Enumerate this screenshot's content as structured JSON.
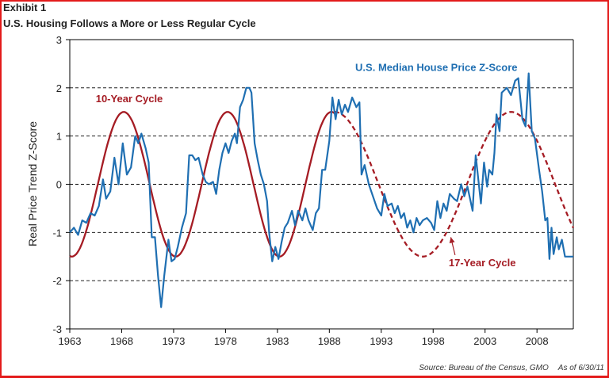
{
  "header": {
    "exhibit": "Exhibit 1",
    "title": "U.S. Housing Follows a More or Less Regular Cycle"
  },
  "footer": {
    "source": "Source: Bureau of the Census, GMO",
    "as_of": "As of 6/30/11"
  },
  "colors": {
    "frame": "#e31b1b",
    "blue_series": "#1f6fb2",
    "red_cycle": "#a51c24",
    "axis": "#000000"
  },
  "chart_data": {
    "type": "line",
    "title": "U.S. Housing Follows a More or Less Regular Cycle",
    "xlabel": "",
    "ylabel": "Real Price Trend Z-Score",
    "xlim": [
      1963,
      2011.5
    ],
    "ylim": [
      -3,
      3
    ],
    "x_ticks": [
      1963,
      1968,
      1973,
      1978,
      1983,
      1988,
      1993,
      1998,
      2003,
      2008
    ],
    "y_ticks": [
      -3,
      -2,
      -1,
      0,
      1,
      2,
      3
    ],
    "grid": "horizontal dashed at -2, -1, 0, 1, 2",
    "annotations": [
      {
        "text": "U.S. Median House Price Z-Score",
        "color": "blue",
        "near": [
          1990.5,
          2.35
        ]
      },
      {
        "text": "10-Year Cycle",
        "color": "red",
        "near": [
          1965.5,
          1.7
        ]
      },
      {
        "text": "17-Year Cycle",
        "color": "red",
        "near": [
          1999.5,
          -1.7
        ],
        "arrow_to": [
          1999.7,
          -1.1
        ]
      }
    ],
    "series": [
      {
        "name": "U.S. Median House Price Z-Score",
        "style": "solid",
        "color": "blue",
        "points": [
          [
            1963.0,
            -1.0
          ],
          [
            1963.4,
            -0.9
          ],
          [
            1963.8,
            -1.05
          ],
          [
            1964.2,
            -0.75
          ],
          [
            1964.6,
            -0.8
          ],
          [
            1965.0,
            -0.6
          ],
          [
            1965.4,
            -0.65
          ],
          [
            1965.8,
            -0.45
          ],
          [
            1966.2,
            0.1
          ],
          [
            1966.5,
            -0.3
          ],
          [
            1966.9,
            -0.15
          ],
          [
            1967.3,
            0.55
          ],
          [
            1967.7,
            0.0
          ],
          [
            1968.1,
            0.85
          ],
          [
            1968.5,
            0.2
          ],
          [
            1968.9,
            0.35
          ],
          [
            1969.3,
            1.0
          ],
          [
            1969.6,
            0.85
          ],
          [
            1969.9,
            1.05
          ],
          [
            1970.3,
            0.75
          ],
          [
            1970.6,
            0.45
          ],
          [
            1970.9,
            -1.1
          ],
          [
            1971.2,
            -1.1
          ],
          [
            1971.5,
            -1.9
          ],
          [
            1971.8,
            -2.55
          ],
          [
            1972.1,
            -1.9
          ],
          [
            1972.5,
            -1.15
          ],
          [
            1972.8,
            -1.6
          ],
          [
            1973.1,
            -1.55
          ],
          [
            1973.4,
            -1.3
          ],
          [
            1973.8,
            -0.9
          ],
          [
            1974.2,
            -0.6
          ],
          [
            1974.5,
            0.6
          ],
          [
            1974.8,
            0.6
          ],
          [
            1975.1,
            0.5
          ],
          [
            1975.4,
            0.55
          ],
          [
            1975.8,
            0.2
          ],
          [
            1976.1,
            0.05
          ],
          [
            1976.4,
            0.0
          ],
          [
            1976.8,
            0.05
          ],
          [
            1977.1,
            -0.2
          ],
          [
            1977.4,
            0.3
          ],
          [
            1977.7,
            0.65
          ],
          [
            1978.0,
            0.85
          ],
          [
            1978.3,
            0.65
          ],
          [
            1978.6,
            0.9
          ],
          [
            1978.9,
            1.05
          ],
          [
            1979.1,
            0.85
          ],
          [
            1979.4,
            1.6
          ],
          [
            1979.7,
            1.75
          ],
          [
            1980.0,
            2.0
          ],
          [
            1980.3,
            2.0
          ],
          [
            1980.5,
            1.9
          ],
          [
            1980.8,
            0.85
          ],
          [
            1981.1,
            0.5
          ],
          [
            1981.4,
            0.2
          ],
          [
            1981.7,
            0.0
          ],
          [
            1982.0,
            -0.35
          ],
          [
            1982.2,
            -1.0
          ],
          [
            1982.5,
            -1.6
          ],
          [
            1982.8,
            -1.3
          ],
          [
            1983.1,
            -1.55
          ],
          [
            1983.4,
            -1.2
          ],
          [
            1983.7,
            -0.9
          ],
          [
            1984.0,
            -0.8
          ],
          [
            1984.4,
            -0.55
          ],
          [
            1984.7,
            -0.85
          ],
          [
            1985.0,
            -0.55
          ],
          [
            1985.4,
            -0.75
          ],
          [
            1985.7,
            -0.5
          ],
          [
            1986.0,
            -0.75
          ],
          [
            1986.4,
            -0.95
          ],
          [
            1986.7,
            -0.6
          ],
          [
            1987.0,
            -0.5
          ],
          [
            1987.3,
            0.3
          ],
          [
            1987.6,
            0.3
          ],
          [
            1988.0,
            0.9
          ],
          [
            1988.3,
            1.8
          ],
          [
            1988.6,
            1.35
          ],
          [
            1988.9,
            1.75
          ],
          [
            1989.2,
            1.45
          ],
          [
            1989.5,
            1.65
          ],
          [
            1989.8,
            1.5
          ],
          [
            1990.2,
            1.8
          ],
          [
            1990.6,
            1.6
          ],
          [
            1990.9,
            1.7
          ],
          [
            1991.1,
            0.2
          ],
          [
            1991.4,
            0.4
          ],
          [
            1991.8,
            0.0
          ],
          [
            1992.2,
            -0.25
          ],
          [
            1992.6,
            -0.5
          ],
          [
            1993.0,
            -0.65
          ],
          [
            1993.3,
            -0.2
          ],
          [
            1993.6,
            -0.45
          ],
          [
            1994.0,
            -0.4
          ],
          [
            1994.3,
            -0.6
          ],
          [
            1994.6,
            -0.45
          ],
          [
            1994.9,
            -0.7
          ],
          [
            1995.2,
            -0.6
          ],
          [
            1995.5,
            -0.9
          ],
          [
            1995.8,
            -0.75
          ],
          [
            1996.1,
            -1.0
          ],
          [
            1996.4,
            -0.7
          ],
          [
            1996.7,
            -0.85
          ],
          [
            1997.0,
            -0.75
          ],
          [
            1997.4,
            -0.7
          ],
          [
            1997.8,
            -0.8
          ],
          [
            1998.1,
            -0.95
          ],
          [
            1998.4,
            -0.35
          ],
          [
            1998.7,
            -0.7
          ],
          [
            1999.0,
            -0.4
          ],
          [
            1999.3,
            -0.55
          ],
          [
            1999.6,
            -0.2
          ],
          [
            2000.0,
            -0.3
          ],
          [
            2000.3,
            -0.35
          ],
          [
            2000.7,
            0.0
          ],
          [
            2001.0,
            -0.25
          ],
          [
            2001.3,
            -0.05
          ],
          [
            2001.8,
            -0.55
          ],
          [
            2002.1,
            0.6
          ],
          [
            2002.6,
            -0.4
          ],
          [
            2002.9,
            0.45
          ],
          [
            2003.2,
            -0.05
          ],
          [
            2003.4,
            0.3
          ],
          [
            2003.7,
            0.2
          ],
          [
            2003.9,
            0.65
          ],
          [
            2004.1,
            1.45
          ],
          [
            2004.4,
            1.1
          ],
          [
            2004.6,
            1.9
          ],
          [
            2005.1,
            2.0
          ],
          [
            2005.5,
            1.85
          ],
          [
            2005.9,
            2.15
          ],
          [
            2006.2,
            2.2
          ],
          [
            2006.6,
            1.35
          ],
          [
            2006.9,
            1.2
          ],
          [
            2007.2,
            2.3
          ],
          [
            2007.5,
            1.1
          ],
          [
            2007.8,
            0.95
          ],
          [
            2008.2,
            0.3
          ],
          [
            2008.5,
            -0.15
          ],
          [
            2008.8,
            -0.75
          ],
          [
            2009.0,
            -0.7
          ],
          [
            2009.2,
            -1.55
          ],
          [
            2009.4,
            -0.9
          ],
          [
            2009.6,
            -1.45
          ],
          [
            2009.9,
            -1.1
          ],
          [
            2010.1,
            -1.35
          ],
          [
            2010.4,
            -1.15
          ],
          [
            2010.7,
            -1.5
          ],
          [
            2011.5,
            -1.5
          ]
        ]
      },
      {
        "name": "10-Year Cycle",
        "style": "solid",
        "color": "red",
        "amplitude": 1.5,
        "period_years": 10,
        "first_trough": 1963.2,
        "range": [
          1963,
          1988.5
        ]
      },
      {
        "name": "17-Year Cycle",
        "style": "dashed",
        "color": "red",
        "amplitude": 1.5,
        "period_years": 17,
        "first_peak": 1988.5,
        "range": [
          1988.5,
          2011.5
        ]
      }
    ]
  }
}
